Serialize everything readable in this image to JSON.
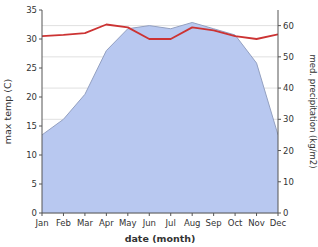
{
  "chart_data": {
    "type": "line",
    "categories": [
      "Jan",
      "Feb",
      "Mar",
      "Apr",
      "May",
      "Jun",
      "Jul",
      "Aug",
      "Sep",
      "Oct",
      "Nov",
      "Dec"
    ],
    "series": [
      {
        "type": "area",
        "axis": "y2",
        "color": "#b8c8f0",
        "values": [
          25,
          30,
          38,
          52,
          59,
          60,
          59,
          61,
          59,
          57,
          48,
          25
        ]
      },
      {
        "type": "line",
        "color": "#cc3333",
        "values": [
          30.5,
          30.7,
          31.0,
          32.5,
          32.0,
          30.0,
          30.0,
          32.0,
          31.5,
          30.5,
          30.0,
          30.8
        ]
      }
    ],
    "x_label": "date (month)",
    "y_label": "max temp (C)",
    "y2_label": "med. precipitation (kg/m2)",
    "ylim": [
      0,
      35
    ],
    "yticks": [
      0,
      5,
      10,
      15,
      20,
      25,
      30,
      35
    ],
    "y2lim": [
      0,
      65
    ],
    "y2ticks": [
      0,
      10,
      20,
      30,
      40,
      50,
      60
    ],
    "grid": true
  }
}
